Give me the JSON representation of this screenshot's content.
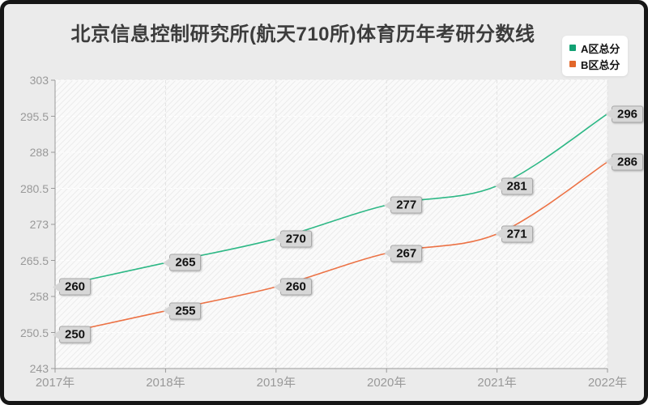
{
  "frame": {
    "background": "#ebebeb",
    "border_color": "#161616"
  },
  "chart_data": {
    "type": "line",
    "title": "北京信息控制研究所(航天710所)体育历年考研分数线",
    "categories": [
      "2017年",
      "2018年",
      "2019年",
      "2020年",
      "2021年",
      "2022年"
    ],
    "series": [
      {
        "name": "A区总分",
        "color": "#2eb886",
        "legend_color": "#12a173",
        "values": [
          260,
          265,
          270,
          277,
          281,
          296
        ]
      },
      {
        "name": "B区总分",
        "color": "#ec7245",
        "legend_color": "#e2672a",
        "values": [
          250,
          255,
          260,
          267,
          271,
          286
        ]
      }
    ],
    "xlabel": "",
    "ylabel": "",
    "ylim": [
      243,
      303
    ],
    "yticks": [
      "243",
      "250.5",
      "258",
      "265.5",
      "273",
      "280.5",
      "288",
      "295.5",
      "303"
    ],
    "grid": true,
    "smooth": true,
    "legend_position": "top-right",
    "axis_color": "#999999",
    "grid_h_color": "#ffffff",
    "grid_v_color": "#e2e2e2",
    "label_style": {
      "background": "#d7d7d7",
      "border": "#a8a8a8",
      "text_color": "#111111"
    }
  }
}
